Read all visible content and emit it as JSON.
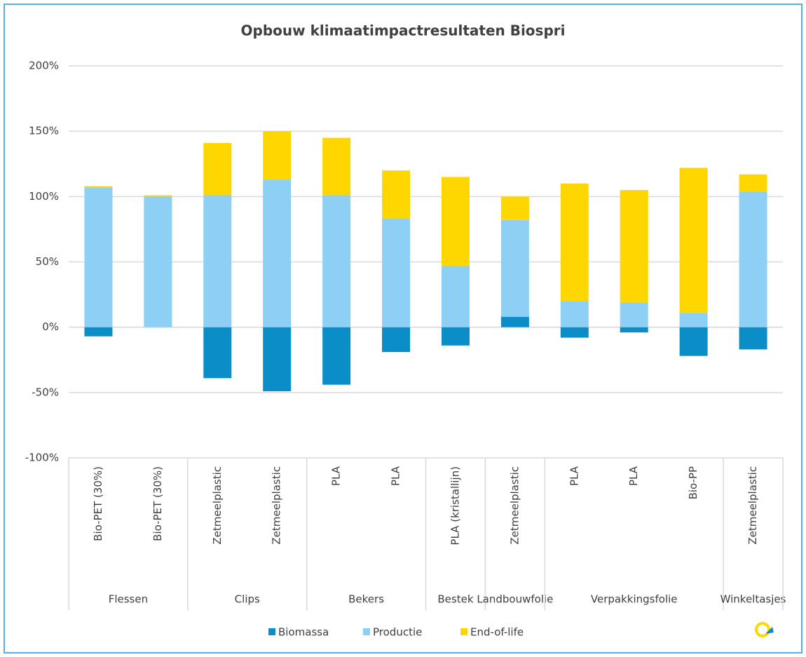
{
  "chart_data": {
    "type": "stacked-bar",
    "title": "Opbouw klimaatimpactresultaten Biospri",
    "categories": [
      "Bio-PET (30%)",
      "Bio-PET (30%)",
      "Zetmeelplastic",
      "Zetmeelplastic",
      "PLA",
      "PLA",
      "PLA (kristallijn)",
      "Zetmeelplastic",
      "PLA",
      "PLA",
      "Bio-PP",
      "Zetmeelplastic"
    ],
    "groups": [
      {
        "label": "Flessen",
        "count": 2
      },
      {
        "label": "Clips",
        "count": 2
      },
      {
        "label": "Bekers",
        "count": 2
      },
      {
        "label": "Bestek",
        "count": 1
      },
      {
        "label": "Landbouwfolie",
        "count": 1
      },
      {
        "label": "Verpakkingsfolie",
        "count": 3
      },
      {
        "label": "Winkeltasjes",
        "count": 1
      }
    ],
    "series": [
      {
        "name": "Biomassa",
        "color": "#0b8dc8",
        "values": [
          -7,
          0,
          -39,
          -49,
          -44,
          -19,
          -14,
          8,
          -8,
          -4,
          -22,
          -17
        ]
      },
      {
        "name": "Productie",
        "color": "#8ecff5",
        "values": [
          107,
          100,
          101,
          113,
          101,
          83,
          47,
          74,
          20,
          19,
          11,
          104
        ]
      },
      {
        "name": "End-of-life",
        "color": "#ffd700",
        "values": [
          1,
          1,
          40,
          37,
          44,
          37,
          68,
          18,
          90,
          86,
          111,
          13
        ]
      }
    ],
    "ylim": [
      -100,
      200
    ],
    "yticks": [
      {
        "value": -100,
        "label": "-100%"
      },
      {
        "value": -50,
        "label": "-50%"
      },
      {
        "value": 0,
        "label": "0%"
      },
      {
        "value": 50,
        "label": "50%"
      },
      {
        "value": 100,
        "label": "100%"
      },
      {
        "value": 150,
        "label": "150%"
      },
      {
        "value": 200,
        "label": "200%"
      }
    ],
    "grid": true,
    "legend": "bottom"
  }
}
